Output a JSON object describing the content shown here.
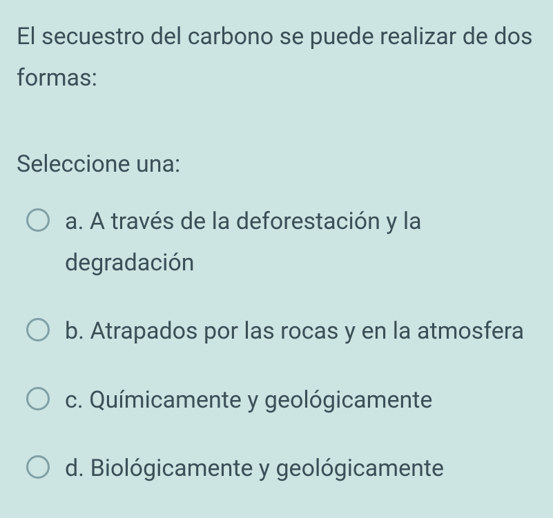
{
  "question": "El secuestro del carbono se puede realizar de dos formas:",
  "prompt": "Seleccione una:",
  "options": [
    {
      "label": "a. A través de la deforestación y la degradación"
    },
    {
      "label": "b. Atrapados por las rocas y en la atmosfera"
    },
    {
      "label": "c. Químicamente y geológicamente"
    },
    {
      "label": "d. Biológicamente y geológicamente"
    }
  ],
  "colors": {
    "background": "#cce4e2",
    "text": "#3a4f56",
    "radio_border": "#80a0a5"
  },
  "typography": {
    "font_size_pt": 26,
    "line_height": 1.75
  }
}
